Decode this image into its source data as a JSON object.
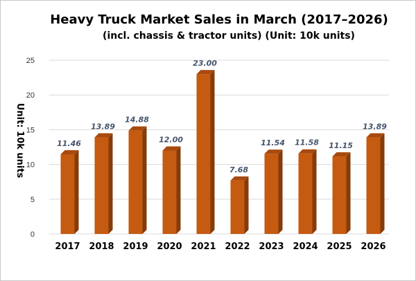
{
  "chart_data": {
    "type": "bar",
    "title": "Heavy Truck Market Sales in March (2017–2026)",
    "subtitle": "(incl. chassis & tractor units) (Unit: 10k units)",
    "ylabel": "Unit: 10k units",
    "xlabel": "",
    "categories": [
      "2017",
      "2018",
      "2019",
      "2020",
      "2021",
      "2022",
      "2023",
      "2024",
      "2025",
      "2026"
    ],
    "values": [
      11.46,
      13.89,
      14.88,
      12.0,
      23.0,
      7.68,
      11.54,
      11.58,
      11.15,
      13.89
    ],
    "data_labels": [
      "11.46",
      "13.89",
      "14.88",
      "12.00",
      "23.00",
      "7.68",
      "11.54",
      "11.58",
      "11.15",
      "13.89"
    ],
    "ylim": [
      0,
      25
    ],
    "yticks": [
      "0",
      "5",
      "10",
      "15",
      "20",
      "25"
    ],
    "grid": true,
    "bar_color": "#c55a11",
    "bar_side_color": "#843c0c",
    "bar_top_color": "#a84a0e",
    "label_color": "#44546a"
  }
}
